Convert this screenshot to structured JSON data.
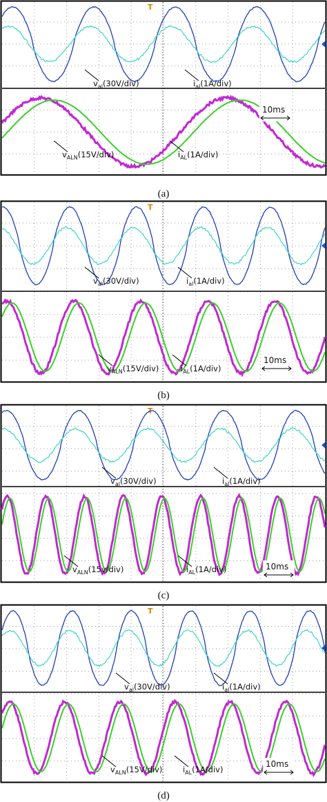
{
  "panels": [
    {
      "label": "(a)",
      "scale": "10ms",
      "annotations": [
        {
          "main": "v",
          "sub": "al",
          "rest": "(30V/div)"
        },
        {
          "main": "i",
          "sub": "al",
          "rest": "(1A/div)"
        },
        {
          "main": "v",
          "sub": "ALN",
          "rest": "(15V/div)"
        },
        {
          "main": "i",
          "sub": "AL",
          "rest": "(1A/div)"
        }
      ]
    },
    {
      "label": "(b)",
      "scale": "10ms",
      "annotations": [
        {
          "main": "v",
          "sub": "al",
          "rest": "(30V/div)"
        },
        {
          "main": "i",
          "sub": "al",
          "rest": "(1A/div)"
        },
        {
          "main": "v",
          "sub": "ALN",
          "rest": "(15V/div)"
        },
        {
          "main": "i",
          "sub": "AL",
          "rest": "(1A/div)"
        }
      ]
    },
    {
      "label": "(c)",
      "scale": "10ms",
      "annotations": [
        {
          "main": "v",
          "sub": "al",
          "rest": "(30V/div)"
        },
        {
          "main": "i",
          "sub": "al",
          "rest": "(1A/div)"
        },
        {
          "main": "v",
          "sub": "ALN",
          "rest": "(15v/div)"
        },
        {
          "main": "i",
          "sub": "AL",
          "rest": "(1A/div)"
        }
      ]
    },
    {
      "label": "(d)",
      "scale": "10ms",
      "annotations": [
        {
          "main": "v",
          "sub": "al",
          "rest": "(30V/div)"
        },
        {
          "main": "i",
          "sub": "al",
          "rest": "(1A/div)"
        },
        {
          "main": "v",
          "sub": "ALN",
          "rest": "(15V/div)"
        },
        {
          "main": "i",
          "sub": "AL",
          "rest": "(1A/div)"
        }
      ]
    }
  ]
}
